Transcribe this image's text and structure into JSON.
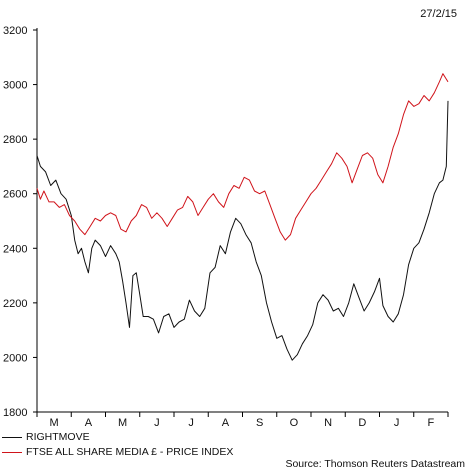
{
  "date_label": "27/2/15",
  "source": "Source: Thomson Reuters Datastream",
  "colors": {
    "rightmove": "#111111",
    "media": "#d0141b"
  },
  "chart_data": {
    "type": "line",
    "x_ticks": [
      "M",
      "A",
      "M",
      "J",
      "J",
      "A",
      "S",
      "O",
      "N",
      "D",
      "J",
      "F"
    ],
    "y_ticks": [
      1800,
      2000,
      2200,
      2400,
      2600,
      2800,
      3000,
      3200
    ],
    "ylim": [
      1800,
      3200
    ],
    "xlim_months": [
      0,
      12
    ],
    "grid": false,
    "legend_position": "bottom-left",
    "series": [
      {
        "name": "RIGHTMOVE",
        "color": "#111111",
        "points": [
          [
            0.0,
            2740
          ],
          [
            0.1,
            2700
          ],
          [
            0.25,
            2680
          ],
          [
            0.4,
            2630
          ],
          [
            0.55,
            2650
          ],
          [
            0.7,
            2600
          ],
          [
            0.85,
            2580
          ],
          [
            1.0,
            2520
          ],
          [
            1.1,
            2430
          ],
          [
            1.2,
            2380
          ],
          [
            1.3,
            2400
          ],
          [
            1.4,
            2350
          ],
          [
            1.5,
            2310
          ],
          [
            1.6,
            2400
          ],
          [
            1.7,
            2430
          ],
          [
            1.85,
            2410
          ],
          [
            2.0,
            2370
          ],
          [
            2.15,
            2410
          ],
          [
            2.3,
            2380
          ],
          [
            2.4,
            2350
          ],
          [
            2.5,
            2280
          ],
          [
            2.6,
            2200
          ],
          [
            2.7,
            2110
          ],
          [
            2.8,
            2300
          ],
          [
            2.9,
            2310
          ],
          [
            3.0,
            2230
          ],
          [
            3.1,
            2150
          ],
          [
            3.25,
            2150
          ],
          [
            3.4,
            2140
          ],
          [
            3.55,
            2090
          ],
          [
            3.7,
            2150
          ],
          [
            3.85,
            2160
          ],
          [
            4.0,
            2110
          ],
          [
            4.15,
            2130
          ],
          [
            4.3,
            2140
          ],
          [
            4.45,
            2210
          ],
          [
            4.6,
            2170
          ],
          [
            4.75,
            2150
          ],
          [
            4.9,
            2180
          ],
          [
            5.05,
            2310
          ],
          [
            5.2,
            2330
          ],
          [
            5.35,
            2410
          ],
          [
            5.5,
            2380
          ],
          [
            5.65,
            2460
          ],
          [
            5.8,
            2510
          ],
          [
            5.95,
            2490
          ],
          [
            6.1,
            2450
          ],
          [
            6.25,
            2420
          ],
          [
            6.4,
            2350
          ],
          [
            6.55,
            2300
          ],
          [
            6.7,
            2200
          ],
          [
            6.85,
            2130
          ],
          [
            7.0,
            2070
          ],
          [
            7.15,
            2080
          ],
          [
            7.3,
            2030
          ],
          [
            7.45,
            1990
          ],
          [
            7.6,
            2010
          ],
          [
            7.75,
            2050
          ],
          [
            7.9,
            2080
          ],
          [
            8.05,
            2120
          ],
          [
            8.2,
            2200
          ],
          [
            8.35,
            2230
          ],
          [
            8.5,
            2210
          ],
          [
            8.65,
            2170
          ],
          [
            8.8,
            2180
          ],
          [
            8.95,
            2150
          ],
          [
            9.1,
            2200
          ],
          [
            9.25,
            2270
          ],
          [
            9.4,
            2220
          ],
          [
            9.55,
            2170
          ],
          [
            9.7,
            2200
          ],
          [
            9.85,
            2240
          ],
          [
            10.0,
            2290
          ],
          [
            10.1,
            2190
          ],
          [
            10.25,
            2150
          ],
          [
            10.4,
            2130
          ],
          [
            10.55,
            2160
          ],
          [
            10.7,
            2230
          ],
          [
            10.85,
            2340
          ],
          [
            11.0,
            2400
          ],
          [
            11.15,
            2420
          ],
          [
            11.3,
            2470
          ],
          [
            11.45,
            2530
          ],
          [
            11.6,
            2600
          ],
          [
            11.75,
            2640
          ],
          [
            11.85,
            2650
          ],
          [
            11.95,
            2700
          ],
          [
            12.0,
            2940
          ]
        ]
      },
      {
        "name": "FTSE ALL SHARE MEDIA £ - PRICE INDEX",
        "color": "#d0141b",
        "points": [
          [
            0.0,
            2620
          ],
          [
            0.1,
            2580
          ],
          [
            0.2,
            2610
          ],
          [
            0.35,
            2570
          ],
          [
            0.5,
            2570
          ],
          [
            0.65,
            2550
          ],
          [
            0.8,
            2560
          ],
          [
            0.95,
            2520
          ],
          [
            1.1,
            2500
          ],
          [
            1.25,
            2470
          ],
          [
            1.4,
            2450
          ],
          [
            1.55,
            2480
          ],
          [
            1.7,
            2510
          ],
          [
            1.85,
            2500
          ],
          [
            2.0,
            2520
          ],
          [
            2.15,
            2530
          ],
          [
            2.3,
            2520
          ],
          [
            2.45,
            2470
          ],
          [
            2.6,
            2460
          ],
          [
            2.75,
            2500
          ],
          [
            2.9,
            2520
          ],
          [
            3.05,
            2560
          ],
          [
            3.2,
            2550
          ],
          [
            3.35,
            2510
          ],
          [
            3.5,
            2530
          ],
          [
            3.65,
            2510
          ],
          [
            3.8,
            2480
          ],
          [
            3.95,
            2510
          ],
          [
            4.1,
            2540
          ],
          [
            4.25,
            2550
          ],
          [
            4.4,
            2590
          ],
          [
            4.55,
            2570
          ],
          [
            4.7,
            2520
          ],
          [
            4.85,
            2550
          ],
          [
            5.0,
            2580
          ],
          [
            5.15,
            2600
          ],
          [
            5.3,
            2570
          ],
          [
            5.45,
            2550
          ],
          [
            5.6,
            2600
          ],
          [
            5.75,
            2630
          ],
          [
            5.9,
            2620
          ],
          [
            6.05,
            2660
          ],
          [
            6.2,
            2650
          ],
          [
            6.35,
            2610
          ],
          [
            6.5,
            2600
          ],
          [
            6.65,
            2610
          ],
          [
            6.8,
            2560
          ],
          [
            6.95,
            2510
          ],
          [
            7.1,
            2460
          ],
          [
            7.25,
            2430
          ],
          [
            7.4,
            2450
          ],
          [
            7.55,
            2510
          ],
          [
            7.7,
            2540
          ],
          [
            7.85,
            2570
          ],
          [
            8.0,
            2600
          ],
          [
            8.15,
            2620
          ],
          [
            8.3,
            2650
          ],
          [
            8.45,
            2680
          ],
          [
            8.6,
            2710
          ],
          [
            8.75,
            2750
          ],
          [
            8.9,
            2730
          ],
          [
            9.05,
            2700
          ],
          [
            9.2,
            2640
          ],
          [
            9.35,
            2690
          ],
          [
            9.5,
            2740
          ],
          [
            9.65,
            2750
          ],
          [
            9.8,
            2730
          ],
          [
            9.95,
            2670
          ],
          [
            10.1,
            2640
          ],
          [
            10.25,
            2700
          ],
          [
            10.4,
            2770
          ],
          [
            10.55,
            2820
          ],
          [
            10.7,
            2890
          ],
          [
            10.85,
            2940
          ],
          [
            11.0,
            2920
          ],
          [
            11.15,
            2930
          ],
          [
            11.3,
            2960
          ],
          [
            11.45,
            2940
          ],
          [
            11.6,
            2970
          ],
          [
            11.75,
            3010
          ],
          [
            11.85,
            3040
          ],
          [
            11.95,
            3020
          ],
          [
            12.0,
            3010
          ]
        ]
      }
    ]
  }
}
